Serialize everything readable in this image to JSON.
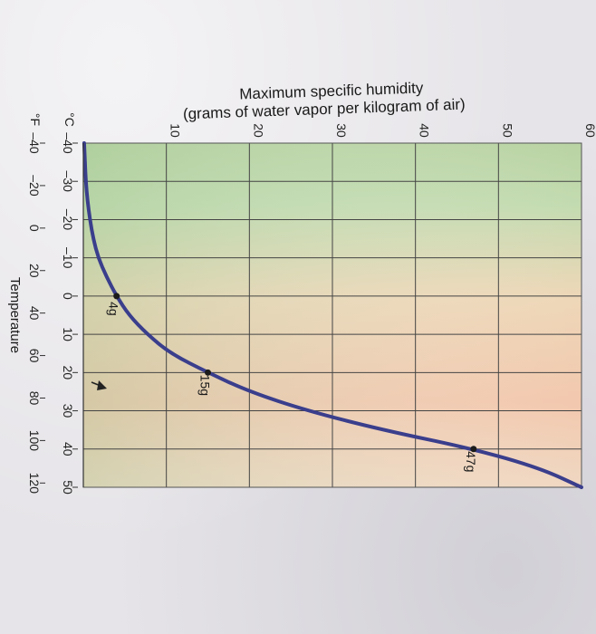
{
  "chart_data": {
    "type": "line",
    "orientation": "rotated-90",
    "title": "Maximum specific humidity",
    "subtitle": "(grams of water vapor per kilogram of air)",
    "xlabel": "Temperature",
    "x_unit_primary": "°C",
    "x_unit_secondary": "°F",
    "x_ticks_c": [
      -40,
      -30,
      -20,
      -10,
      0,
      10,
      20,
      30,
      40,
      50
    ],
    "x_ticks_c_labels": [
      "–40",
      "–30",
      "–20",
      "–10",
      "0",
      "10",
      "20",
      "30",
      "40",
      "50"
    ],
    "x_ticks_f": [
      -40,
      -20,
      0,
      20,
      40,
      60,
      80,
      100,
      120
    ],
    "x_ticks_f_labels": [
      "–40",
      "–20",
      "0",
      "20",
      "40",
      "60",
      "80",
      "100",
      "120"
    ],
    "xlim": [
      -40,
      50
    ],
    "y_ticks": [
      10,
      20,
      30,
      40,
      50,
      60
    ],
    "y_ticks_labels": [
      "10",
      "20",
      "30",
      "40",
      "50",
      "60"
    ],
    "ylim": [
      0,
      60
    ],
    "grid": true,
    "line_color": "#3a3e8c",
    "series": [
      {
        "values_x": [
          -40,
          -35,
          -30,
          -25,
          -20,
          -15,
          -10,
          -5,
          0,
          5,
          10,
          15,
          20,
          25,
          30,
          35,
          40,
          45,
          50
        ],
        "values_y": [
          0.1,
          0.2,
          0.3,
          0.5,
          0.8,
          1.2,
          1.8,
          2.8,
          4,
          5.5,
          7.7,
          10.5,
          15,
          20,
          27,
          36,
          47,
          55,
          60
        ]
      }
    ],
    "points": [
      {
        "x": 0,
        "y": 4,
        "label": "4g"
      },
      {
        "x": 20,
        "y": 15,
        "label": "15g"
      },
      {
        "x": 40,
        "y": 47,
        "label": "47g"
      }
    ]
  }
}
